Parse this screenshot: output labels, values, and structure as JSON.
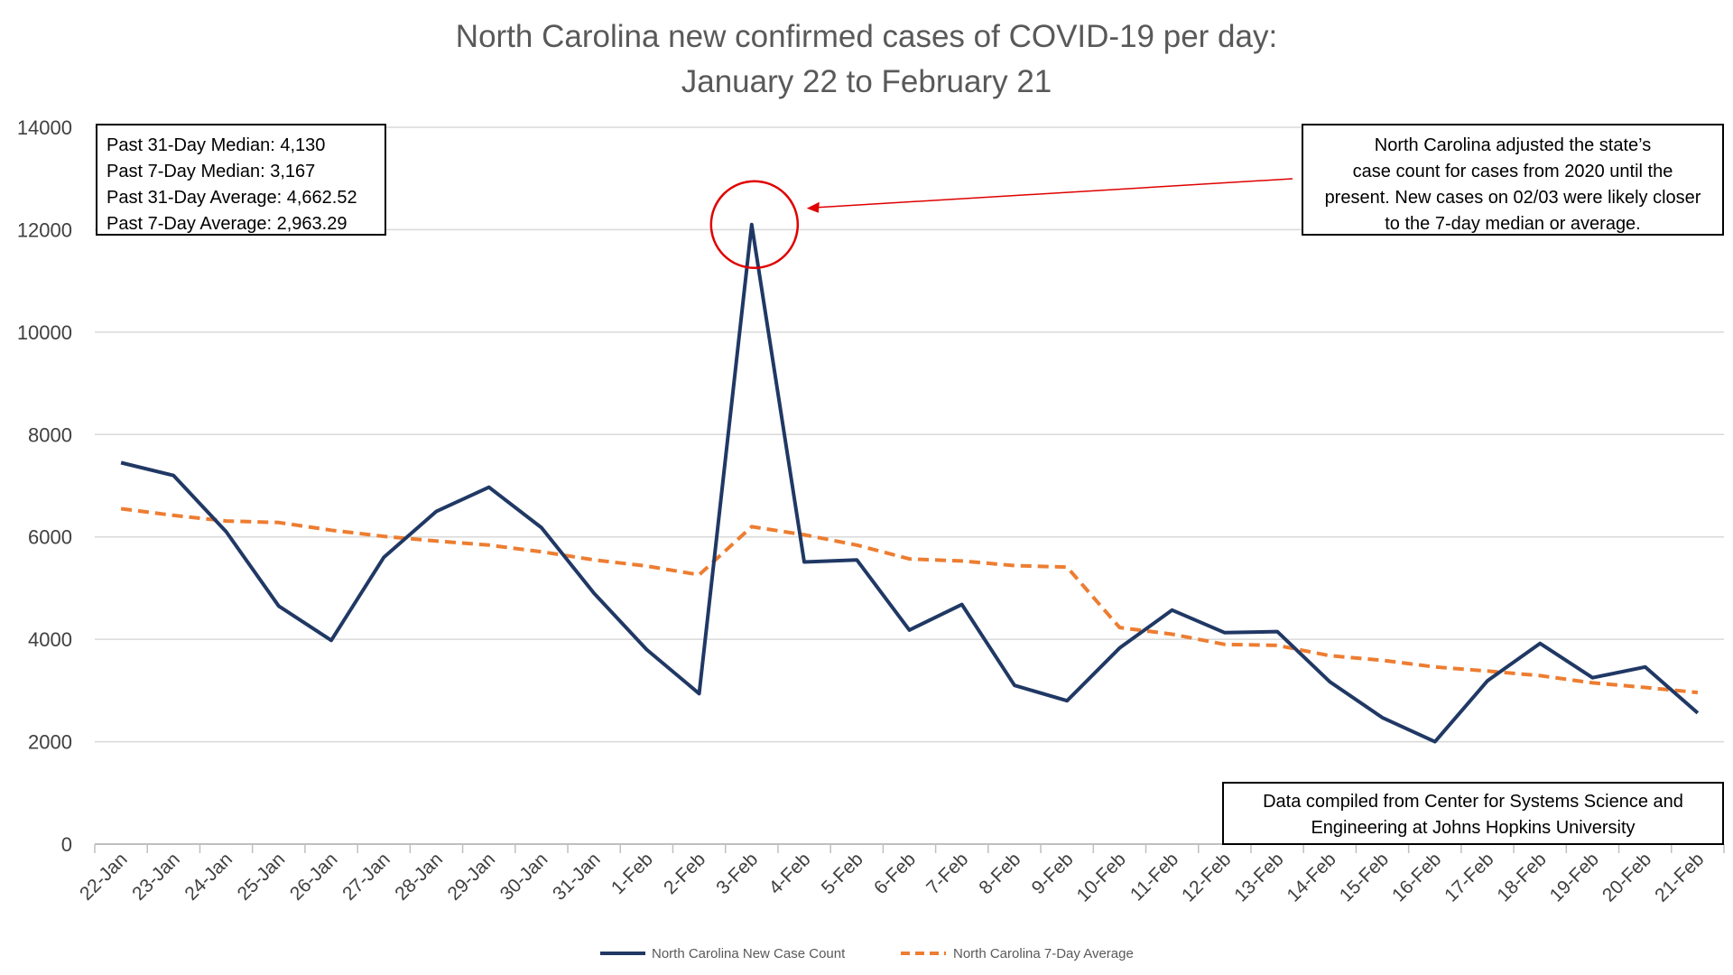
{
  "chart_data": {
    "type": "line",
    "title": [
      "North Carolina new confirmed cases of COVID-19 per day:",
      "January 22 to February 21"
    ],
    "xlabel": "",
    "ylabel": "",
    "ylim": [
      0,
      14000
    ],
    "yticks": [
      0,
      2000,
      4000,
      6000,
      8000,
      10000,
      12000,
      14000
    ],
    "grid": true,
    "legend_position": "bottom",
    "categories": [
      "22-Jan",
      "23-Jan",
      "24-Jan",
      "25-Jan",
      "26-Jan",
      "27-Jan",
      "28-Jan",
      "29-Jan",
      "30-Jan",
      "31-Jan",
      "1-Feb",
      "2-Feb",
      "3-Feb",
      "4-Feb",
      "5-Feb",
      "6-Feb",
      "7-Feb",
      "8-Feb",
      "9-Feb",
      "10-Feb",
      "11-Feb",
      "12-Feb",
      "13-Feb",
      "14-Feb",
      "15-Feb",
      "16-Feb",
      "17-Feb",
      "18-Feb",
      "19-Feb",
      "20-Feb",
      "21-Feb"
    ],
    "series": [
      {
        "name": "North Carolina New Case Count",
        "color": "#203864",
        "style": "solid",
        "values": [
          7450,
          7200,
          6100,
          4650,
          3980,
          5600,
          6500,
          6970,
          6180,
          4900,
          3800,
          2940,
          12100,
          5510,
          5550,
          4180,
          4680,
          3100,
          2800,
          3830,
          4570,
          4130,
          4150,
          3170,
          2470,
          2000,
          3190,
          3920,
          3250,
          3460,
          2560
        ]
      },
      {
        "name": "North Carolina 7-Day Average",
        "color": "#ED7D31",
        "style": "dashed",
        "values": [
          6550,
          6420,
          6310,
          6280,
          6130,
          6010,
          5920,
          5840,
          5710,
          5550,
          5430,
          5260,
          6200,
          6040,
          5840,
          5570,
          5530,
          5440,
          5410,
          4230,
          4100,
          3900,
          3880,
          3680,
          3590,
          3460,
          3380,
          3290,
          3150,
          3060,
          2960
        ]
      }
    ],
    "annotations": {
      "stats": [
        "Past 31-Day Median: 4,130",
        "Past 7-Day Median: 3,167",
        "Past 31-Day Average: 4,662.52",
        "Past 7-Day Average: 2,963.29"
      ],
      "adjustment_note": [
        "North Carolina adjusted the state’s",
        "case count for cases from 2020 until the",
        "present. New cases on 02/03 were likely closer",
        "to the 7-day median or average."
      ],
      "source_note": [
        "Data compiled from Center for Systems Science and",
        "Engineering at Johns Hopkins University"
      ],
      "highlight_category": "3-Feb"
    }
  }
}
